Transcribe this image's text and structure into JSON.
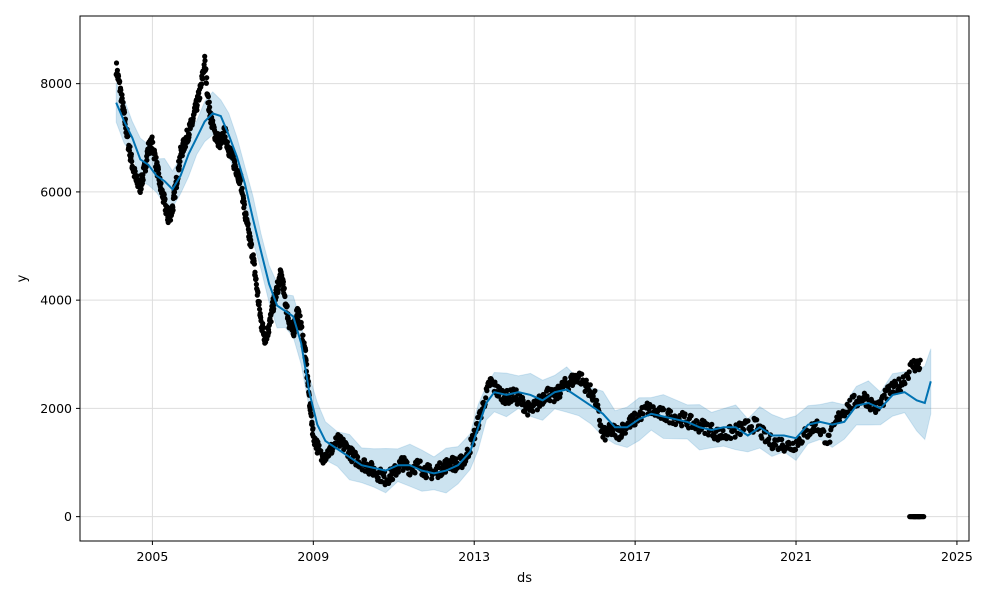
{
  "chart_data": {
    "type": "line",
    "title": "",
    "xlabel": "ds",
    "ylabel": "y",
    "xlim": [
      2003.2,
      2025.3
    ],
    "ylim": [
      -450,
      9250
    ],
    "x_ticks": [
      2005,
      2009,
      2013,
      2017,
      2021,
      2025
    ],
    "x_tick_labels": [
      "2005",
      "2009",
      "2013",
      "2017",
      "2021",
      "2025"
    ],
    "y_ticks": [
      0,
      2000,
      4000,
      6000,
      8000
    ],
    "y_tick_labels": [
      "0",
      "2000",
      "4000",
      "6000",
      "8000"
    ],
    "grid": true,
    "colors": {
      "forecast": "#0072B2",
      "band": "#0072B2",
      "observed": "#000000",
      "grid": "#dddddd"
    },
    "series": [
      {
        "role": "forecast",
        "x": [
          2004.1,
          2004.3,
          2004.5,
          2004.7,
          2004.9,
          2005.1,
          2005.3,
          2005.5,
          2005.7,
          2005.9,
          2006.1,
          2006.3,
          2006.5,
          2006.7,
          2006.9,
          2007.1,
          2007.3,
          2007.5,
          2007.7,
          2007.9,
          2008.1,
          2008.3,
          2008.5,
          2008.7,
          2008.9,
          2009.1,
          2009.3,
          2009.6,
          2009.9,
          2010.2,
          2010.5,
          2010.8,
          2011.1,
          2011.4,
          2011.7,
          2012.0,
          2012.3,
          2012.6,
          2012.9,
          2013.1,
          2013.3,
          2013.5,
          2013.8,
          2014.1,
          2014.4,
          2014.7,
          2015.0,
          2015.3,
          2015.6,
          2015.9,
          2016.2,
          2016.5,
          2016.8,
          2017.1,
          2017.4,
          2017.7,
          2018.0,
          2018.3,
          2018.6,
          2018.9,
          2019.2,
          2019.5,
          2019.8,
          2020.1,
          2020.4,
          2020.7,
          2021.0,
          2021.3,
          2021.6,
          2021.9,
          2022.2,
          2022.5,
          2022.8,
          2023.1,
          2023.4,
          2023.7,
          2024.0,
          2024.2,
          2024.35
        ],
        "y": [
          7650,
          7300,
          7000,
          6600,
          6500,
          6300,
          6200,
          6050,
          6300,
          6700,
          7000,
          7300,
          7450,
          7400,
          7050,
          6650,
          6150,
          5500,
          4900,
          4300,
          3900,
          3800,
          3700,
          3200,
          2300,
          1700,
          1400,
          1250,
          1100,
          950,
          900,
          850,
          950,
          950,
          850,
          800,
          850,
          950,
          1200,
          1650,
          2100,
          2300,
          2250,
          2300,
          2250,
          2150,
          2300,
          2350,
          2200,
          2050,
          1900,
          1650,
          1650,
          1800,
          1900,
          1850,
          1800,
          1750,
          1650,
          1600,
          1650,
          1650,
          1500,
          1650,
          1500,
          1500,
          1450,
          1700,
          1750,
          1700,
          1750,
          2050,
          2100,
          2000,
          2250,
          2300,
          2150,
          2100,
          2500
        ]
      },
      {
        "role": "observed",
        "x": [
          2004.1,
          2004.2,
          2004.3,
          2004.4,
          2004.5,
          2004.6,
          2004.7,
          2004.8,
          2004.9,
          2005.0,
          2005.1,
          2005.2,
          2005.3,
          2005.4,
          2005.5,
          2005.6,
          2005.7,
          2005.8,
          2005.9,
          2006.0,
          2006.1,
          2006.2,
          2006.3,
          2006.4,
          2006.5,
          2006.6,
          2006.7,
          2006.8,
          2006.9,
          2007.0,
          2007.1,
          2007.2,
          2007.3,
          2007.4,
          2007.5,
          2007.6,
          2007.7,
          2007.8,
          2007.9,
          2008.0,
          2008.1,
          2008.2,
          2008.3,
          2008.4,
          2008.5,
          2008.6,
          2008.7,
          2008.8,
          2008.9,
          2009.0,
          2009.2,
          2009.4,
          2009.6,
          2009.8,
          2010.0,
          2010.2,
          2010.4,
          2010.6,
          2010.8,
          2011.0,
          2011.2,
          2011.4,
          2011.6,
          2011.8,
          2012.0,
          2012.2,
          2012.4,
          2012.6,
          2012.8,
          2013.0,
          2013.2,
          2013.4,
          2013.6,
          2013.8,
          2014.0,
          2014.2,
          2014.4,
          2014.6,
          2014.8,
          2015.0,
          2015.2,
          2015.4,
          2015.6,
          2015.8,
          2016.0,
          2016.2,
          2016.4,
          2016.6,
          2016.8,
          2017.0,
          2017.3,
          2017.6,
          2017.9,
          2018.2,
          2018.5,
          2018.8,
          2019.1,
          2019.4,
          2019.7,
          2020.0,
          2020.3,
          2020.6,
          2020.9,
          2021.2,
          2021.5,
          2021.8,
          2022.1,
          2022.4,
          2022.7,
          2023.0,
          2023.3,
          2023.6,
          2023.9,
          2024.1
        ],
        "y": [
          8300,
          7900,
          7400,
          6900,
          6500,
          6200,
          6100,
          6400,
          6800,
          6900,
          6500,
          6100,
          5800,
          5500,
          5700,
          6200,
          6700,
          6900,
          7100,
          7300,
          7600,
          7900,
          8400,
          7600,
          7200,
          7000,
          6900,
          7100,
          6800,
          6600,
          6400,
          6200,
          5600,
          5200,
          4800,
          4200,
          3600,
          3300,
          3500,
          3900,
          4200,
          4500,
          4000,
          3600,
          3400,
          3800,
          3500,
          3000,
          2200,
          1500,
          1100,
          1200,
          1400,
          1300,
          1100,
          1000,
          900,
          800,
          700,
          800,
          1000,
          900,
          950,
          850,
          800,
          900,
          1000,
          950,
          1100,
          1500,
          2000,
          2500,
          2300,
          2200,
          2250,
          2100,
          1950,
          2100,
          2300,
          2200,
          2400,
          2500,
          2600,
          2400,
          2200,
          1500,
          1600,
          1550,
          1700,
          1800,
          2000,
          1900,
          1850,
          1800,
          1700,
          1650,
          1500,
          1550,
          1650,
          1700,
          1400,
          1350,
          1300,
          1500,
          1700,
          1400,
          1900,
          2100,
          2200,
          2000,
          2300,
          2450,
          2800,
          2800
        ]
      },
      {
        "role": "observed-outliers",
        "x": [
          2023.9,
          2024.0,
          2024.1
        ],
        "y": [
          0,
          0,
          0
        ]
      }
    ]
  }
}
